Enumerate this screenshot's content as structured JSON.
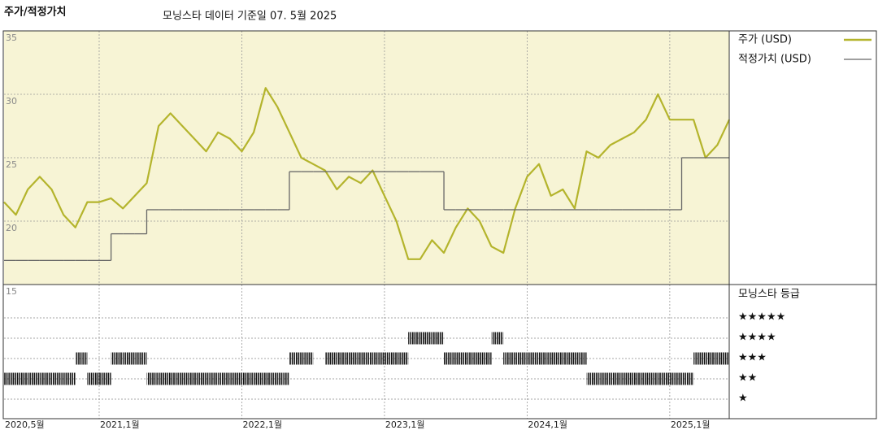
{
  "chart_data": {
    "type": "line",
    "title": "주가/적정가치",
    "subtitle": "모닝스타 데이터 기준일 07. 5월 2025",
    "x": [
      "2020-05",
      "2020-06",
      "2020-07",
      "2020-08",
      "2020-09",
      "2020-10",
      "2020-11",
      "2020-12",
      "2021-01",
      "2021-02",
      "2021-03",
      "2021-04",
      "2021-05",
      "2021-06",
      "2021-07",
      "2021-08",
      "2021-09",
      "2021-10",
      "2021-11",
      "2021-12",
      "2022-01",
      "2022-02",
      "2022-03",
      "2022-04",
      "2022-05",
      "2022-06",
      "2022-07",
      "2022-08",
      "2022-09",
      "2022-10",
      "2022-11",
      "2022-12",
      "2023-01",
      "2023-02",
      "2023-03",
      "2023-04",
      "2023-05",
      "2023-06",
      "2023-07",
      "2023-08",
      "2023-09",
      "2023-10",
      "2023-11",
      "2023-12",
      "2024-01",
      "2024-02",
      "2024-03",
      "2024-04",
      "2024-05",
      "2024-06",
      "2024-07",
      "2024-08",
      "2024-09",
      "2024-10",
      "2024-11",
      "2024-12",
      "2025-01",
      "2025-02",
      "2025-03",
      "2025-04",
      "2025-05",
      "2025-06"
    ],
    "series": [
      {
        "name": "주가 (USD)",
        "color": "#b4b42c",
        "values": [
          21.5,
          20.5,
          22.5,
          23.5,
          22.5,
          20.5,
          19.5,
          21.5,
          21.5,
          21.8,
          21.0,
          22.0,
          23.0,
          27.5,
          28.5,
          27.5,
          26.5,
          25.5,
          27.0,
          26.5,
          25.5,
          27.0,
          30.5,
          29.0,
          27.0,
          25.0,
          24.5,
          24.0,
          22.5,
          23.5,
          23.0,
          24.0,
          22.0,
          20.0,
          17.0,
          17.0,
          18.5,
          17.5,
          19.5,
          21.0,
          20.0,
          18.0,
          17.5,
          21.0,
          23.5,
          24.5,
          22.0,
          22.5,
          21.0,
          25.5,
          25.0,
          26.0,
          26.5,
          27.0,
          28.0,
          30.0,
          28.0,
          28.0,
          28.0,
          25.0,
          26.0,
          28.0
        ]
      },
      {
        "name": "적정가치 (USD)",
        "color": "#666666",
        "step": true,
        "values": [
          16.9,
          16.9,
          16.9,
          16.9,
          16.9,
          16.9,
          16.9,
          16.9,
          16.9,
          19.0,
          19.0,
          19.0,
          20.9,
          20.9,
          20.9,
          20.9,
          20.9,
          20.9,
          20.9,
          20.9,
          20.9,
          20.9,
          20.9,
          20.9,
          23.9,
          23.9,
          23.9,
          23.9,
          23.9,
          23.9,
          23.9,
          23.9,
          23.9,
          23.9,
          23.9,
          23.9,
          23.9,
          20.9,
          20.9,
          20.9,
          20.9,
          20.9,
          20.9,
          20.9,
          20.9,
          20.9,
          20.9,
          20.9,
          20.9,
          20.9,
          20.9,
          20.9,
          20.9,
          20.9,
          20.9,
          20.9,
          20.9,
          25.0,
          25.0,
          25.0,
          25.0,
          25.0
        ]
      }
    ],
    "xlim": [
      "2020-05",
      "2025-06"
    ],
    "xticks": [
      {
        "value": "2020-05",
        "label": "2020,5월"
      },
      {
        "value": "2021-01",
        "label": "2021,1월"
      },
      {
        "value": "2022-01",
        "label": "2022,1월"
      },
      {
        "value": "2023-01",
        "label": "2023,1월"
      },
      {
        "value": "2024-01",
        "label": "2024,1월"
      },
      {
        "value": "2025-01",
        "label": "2025,1월"
      }
    ],
    "ylim": [
      15,
      35
    ],
    "yticks": [
      15,
      20,
      25,
      30,
      35
    ],
    "grid": true,
    "background": "#f7f4d5",
    "rating_title": "모닝스타 등급",
    "rating_ticks": [
      {
        "value": 5,
        "label": "★★★★★"
      },
      {
        "value": 4,
        "label": "★★★★"
      },
      {
        "value": 3,
        "label": "★★★"
      },
      {
        "value": 2,
        "label": "★★"
      },
      {
        "value": 1,
        "label": "★"
      }
    ],
    "ratings": [
      2,
      2,
      2,
      2,
      2,
      2,
      3,
      2,
      2,
      3,
      3,
      3,
      2,
      2,
      2,
      2,
      2,
      2,
      2,
      2,
      2,
      2,
      2,
      2,
      3,
      3,
      null,
      3,
      3,
      3,
      3,
      3,
      3,
      3,
      4,
      4,
      4,
      3,
      3,
      3,
      3,
      4,
      3,
      3,
      3,
      3,
      3,
      3,
      3,
      2,
      2,
      2,
      2,
      2,
      2,
      2,
      2,
      2,
      3,
      3,
      3,
      null
    ]
  }
}
